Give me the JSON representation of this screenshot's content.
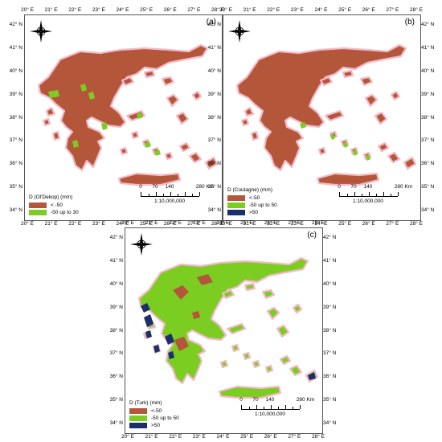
{
  "colors": {
    "brown": "#b3563a",
    "green": "#7ccd22",
    "navy": "#1b2f6b",
    "pink_outline": "#f4b9c6"
  },
  "panels": [
    {
      "id": "a",
      "letter": "(a)",
      "legend_title": "D (Ol'Dekop) (mm)",
      "legend_items": [
        {
          "label": "< -50",
          "color": "#b3563a"
        },
        {
          "label": "-50 up to 30",
          "color": "#7ccd22"
        }
      ],
      "lon_labels": [
        "20° E",
        "21° E",
        "22° E",
        "23° E",
        "24° E",
        "25° E",
        "26° E",
        "27° E",
        "28° E"
      ],
      "lat_labels": [
        "42° N",
        "41° N",
        "40° N",
        "39° N",
        "38° N",
        "37° N",
        "36° N",
        "35° N",
        "34° N"
      ],
      "scale_labels": [
        "0",
        "70",
        "140",
        "280 Km"
      ],
      "scale_ratio": "1:10,000,000",
      "compass_icon": "north-arrow-icon"
    },
    {
      "id": "b",
      "letter": "(b)",
      "legend_title": "D (Coutagne) (mm)",
      "legend_items": [
        {
          "label": "<-50",
          "color": "#b3563a"
        },
        {
          "label": "-50 up to 50",
          "color": "#7ccd22"
        },
        {
          "label": ">50",
          "color": "#1b2f6b"
        }
      ],
      "lon_labels": [
        "20° E",
        "21° E",
        "22° E",
        "23° E",
        "24° E",
        "25° E",
        "26° E",
        "27° E",
        "28° E"
      ],
      "lat_labels": [
        "42° N",
        "41° N",
        "40° N",
        "39° N",
        "38° N",
        "37° N",
        "36° N",
        "35° N",
        "34° N"
      ],
      "scale_labels": [
        "0",
        "70",
        "140",
        "280 Km"
      ],
      "scale_ratio": "1:10,000,000",
      "compass_icon": "north-arrow-icon"
    },
    {
      "id": "c",
      "letter": "(c)",
      "legend_title": "D (Turk) (mm)",
      "legend_items": [
        {
          "label": "<-50",
          "color": "#b3563a"
        },
        {
          "label": "-50 up to 50",
          "color": "#7ccd22"
        },
        {
          "label": ">50",
          "color": "#1b2f6b"
        }
      ],
      "lon_labels": [
        "20° E",
        "21° E",
        "22° E",
        "23° E",
        "24° E",
        "25° E",
        "26° E",
        "27° E",
        "28° E"
      ],
      "lat_labels": [
        "42° N",
        "41° N",
        "40° N",
        "39° N",
        "38° N",
        "37° N",
        "36° N",
        "35° N",
        "34° N"
      ],
      "scale_labels": [
        "0",
        "70",
        "140",
        "280 Km"
      ],
      "scale_ratio": "1:10,000,000",
      "compass_icon": "north-arrow-icon"
    }
  ]
}
